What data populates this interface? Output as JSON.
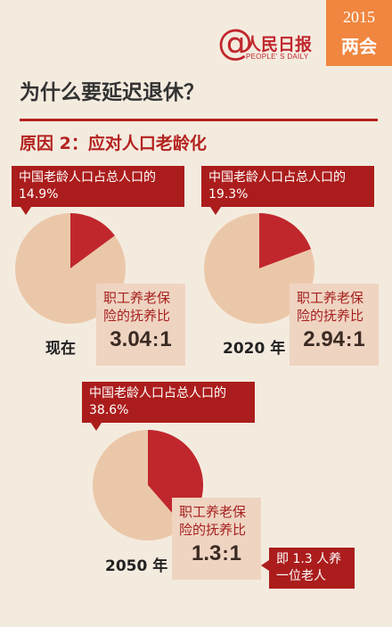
{
  "badge": {
    "year": "2015",
    "session": "两会"
  },
  "logo": {
    "at": "@",
    "name": "人民日报",
    "english": "PEOPLE' S DAILY"
  },
  "headline": "为什么要延迟退休？",
  "subheadline": "原因 2：应对人口老龄化",
  "colors": {
    "slice": "#c0272d",
    "rest": "#ebc7a9",
    "accent": "#ab1d1c",
    "background": "#f4ebdf"
  },
  "chart_data": [
    {
      "type": "pie",
      "period": "现在",
      "callout": "中国老龄人口占总人口的 14.9%",
      "slices": [
        {
          "value": 14.9
        },
        {
          "value": 85.1
        }
      ],
      "ratio_label": "职工养老保险的抚养比",
      "ratio_value": "3.04",
      "ratio_colon": ":",
      "ratio_base": "1"
    },
    {
      "type": "pie",
      "period": "2020 年",
      "callout": "中国老龄人口占总人口的 19.3%",
      "slices": [
        {
          "value": 19.3
        },
        {
          "value": 80.7
        }
      ],
      "ratio_label": "职工养老保险的抚养比",
      "ratio_value": "2.94",
      "ratio_colon": ":",
      "ratio_base": "1"
    },
    {
      "type": "pie",
      "period": "2050 年",
      "callout": "中国老龄人口占总人口的 38.6%",
      "slices": [
        {
          "value": 38.6
        },
        {
          "value": 61.4
        }
      ],
      "ratio_label": "职工养老保险的抚养比",
      "ratio_value": "1.3",
      "ratio_colon": ":",
      "ratio_base": "1",
      "note": "即 1.3 人养一位老人"
    }
  ]
}
